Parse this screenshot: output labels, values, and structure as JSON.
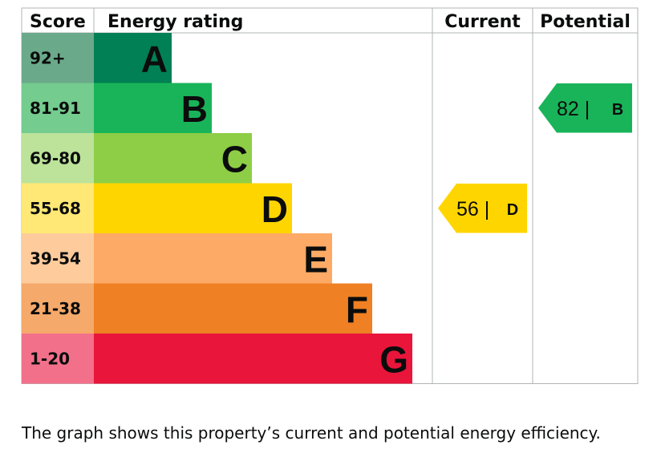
{
  "chart_data": {
    "type": "bar",
    "headers": {
      "score": "Score",
      "rating": "Energy rating",
      "current": "Current",
      "potential": "Potential"
    },
    "bands": [
      {
        "score": "92+",
        "letter": "A",
        "color": "#008054",
        "score_color": "#6aa98a"
      },
      {
        "score": "81-91",
        "letter": "B",
        "color": "#19b459",
        "score_color": "#74cc8e"
      },
      {
        "score": "69-80",
        "letter": "C",
        "color": "#8dce46",
        "score_color": "#bce399"
      },
      {
        "score": "55-68",
        "letter": "D",
        "color": "#ffd500",
        "score_color": "#ffe875"
      },
      {
        "score": "39-54",
        "letter": "E",
        "color": "#fcaa65",
        "score_color": "#fdcb9c"
      },
      {
        "score": "21-38",
        "letter": "F",
        "color": "#ef8023",
        "score_color": "#f5a96a"
      },
      {
        "score": "1-20",
        "letter": "G",
        "color": "#e9153b",
        "score_color": "#f2708a"
      }
    ],
    "current": {
      "value": 56,
      "band": "D"
    },
    "potential": {
      "value": 82,
      "band": "B"
    }
  },
  "caption": "The graph shows this property’s current and potential energy efficiency."
}
